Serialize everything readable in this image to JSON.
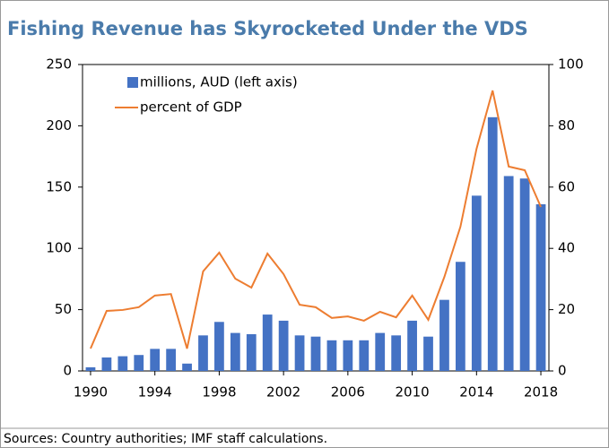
{
  "chart_data": {
    "type": "bar_line",
    "title": "Fishing Revenue has Skyrocketed Under the VDS",
    "source": "Sources: Country authorities; IMF staff calculations.",
    "x": [
      1990,
      1991,
      1992,
      1993,
      1994,
      1995,
      1996,
      1997,
      1998,
      1999,
      2000,
      2001,
      2002,
      2003,
      2004,
      2005,
      2006,
      2007,
      2008,
      2009,
      2010,
      2011,
      2012,
      2013,
      2014,
      2015,
      2016,
      2017,
      2018
    ],
    "xlim": [
      1989.5,
      2018.5
    ],
    "xticks": [
      1990,
      1994,
      1998,
      2002,
      2006,
      2010,
      2014,
      2018
    ],
    "ylim": [
      0,
      250
    ],
    "yticks": [
      0,
      50,
      100,
      150,
      200,
      250
    ],
    "y2lim": [
      0,
      100
    ],
    "y2ticks": [
      0,
      20,
      40,
      60,
      80,
      100
    ],
    "legend": "upper left",
    "series": [
      {
        "name": "millions, AUD (left axis)",
        "type": "bar",
        "color": "#4472c4",
        "values": [
          3,
          11,
          12,
          13,
          18,
          18,
          6,
          29,
          40,
          31,
          30,
          46,
          41,
          29,
          28,
          25,
          25,
          25,
          31,
          29,
          41,
          28,
          58,
          89,
          143,
          207,
          159,
          157,
          136
        ]
      },
      {
        "name": "percent of GDP",
        "type": "line",
        "axis": "y2",
        "color": "#ed7d31",
        "values": [
          7.3,
          19.6,
          19.9,
          20.8,
          24.6,
          25.1,
          7.3,
          32.5,
          38.6,
          30.1,
          27.2,
          38.3,
          31.6,
          21.6,
          20.8,
          17.3,
          17.8,
          16.4,
          19.3,
          17.5,
          24.6,
          16.7,
          30.7,
          47.1,
          72.5,
          91.5,
          66.7,
          65.5,
          53.5
        ]
      }
    ]
  }
}
